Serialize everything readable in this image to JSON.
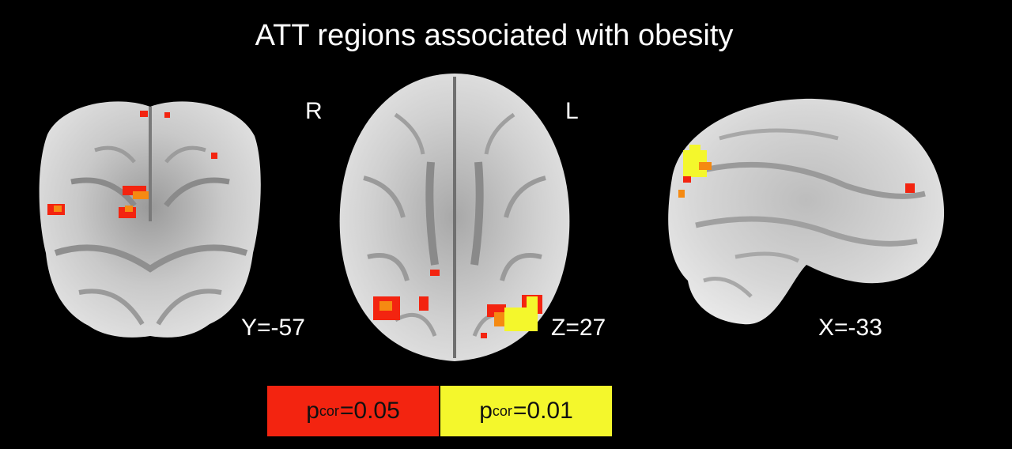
{
  "title": "ATT regions associated with obesity",
  "orientation": {
    "right": "R",
    "left": "L"
  },
  "slices": [
    {
      "name": "coronal",
      "coord": "Y=-57"
    },
    {
      "name": "axial",
      "coord": "Z=27"
    },
    {
      "name": "sagittal",
      "coord": "X=-33"
    }
  ],
  "legend": [
    {
      "p": "p",
      "sub": "cor",
      "value": "=0.05",
      "color": "#f32410"
    },
    {
      "p": "p",
      "sub": "cor",
      "value": "=0.01",
      "color": "#f4f72c"
    }
  ],
  "colors": {
    "background": "#000000",
    "brain_gray": "#d9d9d9",
    "activation_red": "#f32410",
    "activation_orange": "#f58a12",
    "activation_yellow": "#f4f72c"
  }
}
